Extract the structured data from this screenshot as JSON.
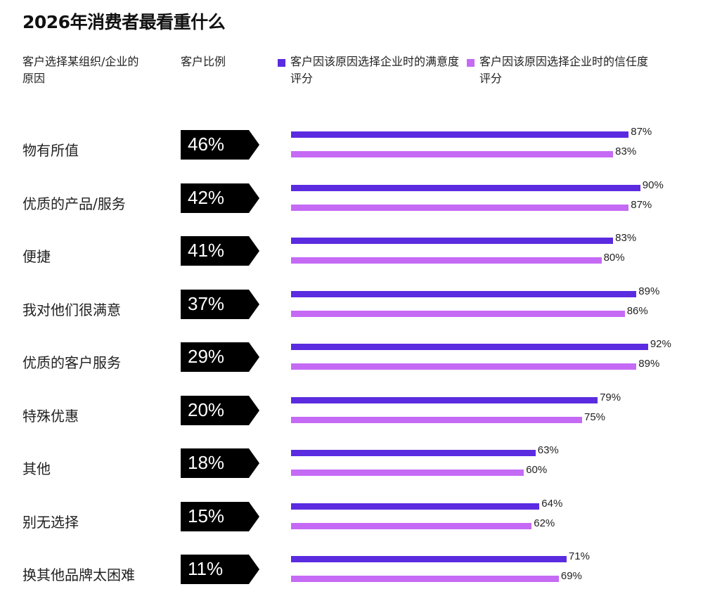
{
  "title": "2026年消费者最看重什么",
  "headers": {
    "reason": "客户选择某组织/企业的原因",
    "share": "客户比例"
  },
  "legend": [
    {
      "label": "客户因该原因选择企业时的满意度评分",
      "color": "#5b2be0"
    },
    {
      "label": "客户因该原因选择企业时的信任度评分",
      "color": "#c56af5"
    }
  ],
  "colors": {
    "satisfaction": "#5b2be0",
    "trust": "#c56af5",
    "share_tag": "#000000"
  },
  "rows": [
    {
      "reason": "物有所值",
      "share": "46%",
      "sat": "87%",
      "trust": "83%"
    },
    {
      "reason": "优质的产品/服务",
      "share": "42%",
      "sat": "90%",
      "trust": "87%"
    },
    {
      "reason": "便捷",
      "share": "41%",
      "sat": "83%",
      "trust": "80%"
    },
    {
      "reason": "我对他们很满意",
      "share": "37%",
      "sat": "89%",
      "trust": "86%"
    },
    {
      "reason": "优质的客户服务",
      "share": "29%",
      "sat": "92%",
      "trust": "89%"
    },
    {
      "reason": "特殊优惠",
      "share": "20%",
      "sat": "79%",
      "trust": "75%"
    },
    {
      "reason": "其他",
      "share": "18%",
      "sat": "63%",
      "trust": "60%"
    },
    {
      "reason": "别无选择",
      "share": "15%",
      "sat": "64%",
      "trust": "62%"
    },
    {
      "reason": "换其他品牌太困难",
      "share": "11%",
      "sat": "71%",
      "trust": "69%"
    }
  ],
  "chart_data": {
    "type": "bar",
    "orientation": "horizontal",
    "title": "2026年消费者最看重什么",
    "categories": [
      "物有所值",
      "优质的产品/服务",
      "便捷",
      "我对他们很满意",
      "优质的客户服务",
      "特殊优惠",
      "其他",
      "别无选择",
      "换其他品牌太困难"
    ],
    "customer_share_pct": [
      46,
      42,
      41,
      37,
      29,
      20,
      18,
      15,
      11
    ],
    "series": [
      {
        "name": "客户因该原因选择企业时的满意度评分",
        "color": "#5b2be0",
        "values": [
          87,
          90,
          83,
          89,
          92,
          79,
          63,
          64,
          71
        ]
      },
      {
        "name": "客户因该原因选择企业时的信任度评分",
        "color": "#c56af5",
        "values": [
          83,
          87,
          80,
          86,
          89,
          75,
          60,
          62,
          69
        ]
      }
    ],
    "column_labels": [
      "客户选择某组织/企业的原因",
      "客户比例"
    ],
    "xlabel": "",
    "ylabel": "",
    "xlim": [
      0,
      100
    ],
    "grid": false,
    "legend_position": "top",
    "value_labels": true
  }
}
